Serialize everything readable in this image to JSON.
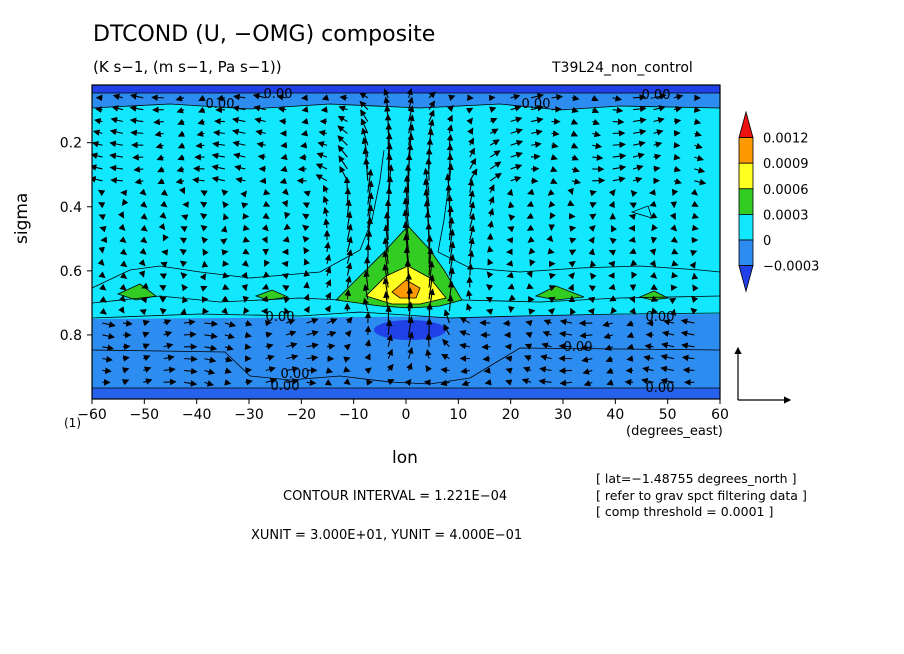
{
  "chart_data": {
    "type": "contour",
    "title": "DTCOND (U, −OMG) composite",
    "units_line": "(K s−1, (m s−1, Pa s−1))",
    "run_label": "T39L24_non_control",
    "xlabel": "lon",
    "x_units": "(degrees_east)",
    "ylabel": "sigma",
    "level_marker": "(1)",
    "xlim": [
      -60,
      60
    ],
    "ylim": [
      1.0,
      0.02
    ],
    "x_ticks": [
      -60,
      -50,
      -40,
      -30,
      -20,
      -10,
      0,
      10,
      20,
      30,
      40,
      50,
      60
    ],
    "y_ticks": [
      0.2,
      0.4,
      0.6,
      0.8
    ],
    "colorbar": {
      "levels": [
        "0.0012",
        "0.0009",
        "0.0006",
        "0.0003",
        "0",
        "−0.0003"
      ],
      "colors": [
        "#ee1111",
        "#ff9900",
        "#ffff22",
        "#33cc22",
        "#11e8ff",
        "#2d8cf0",
        "#2040e8"
      ]
    },
    "contour_labels": [
      "0.00",
      "0.00",
      "0.00",
      "0.00",
      "0.00",
      "0.00",
      "0.00",
      "0.00",
      "0.00",
      "0.00"
    ],
    "max_anomaly": {
      "lon": 0,
      "sigma": 0.65,
      "value": 0.0011
    },
    "vector_reference": {
      "xunit": 30,
      "yunit": 0.4
    },
    "contour_interval": "CONTOUR INTERVAL = 1.221E−04",
    "vector_units": "XUNIT = 3.000E+01, YUNIT = 4.000E−01",
    "notes": [
      "[ lat=−1.48755 degrees_north ]",
      "[ refer to grav spct filtering data ]",
      "[ comp threshold = 0.0001 ]"
    ]
  }
}
